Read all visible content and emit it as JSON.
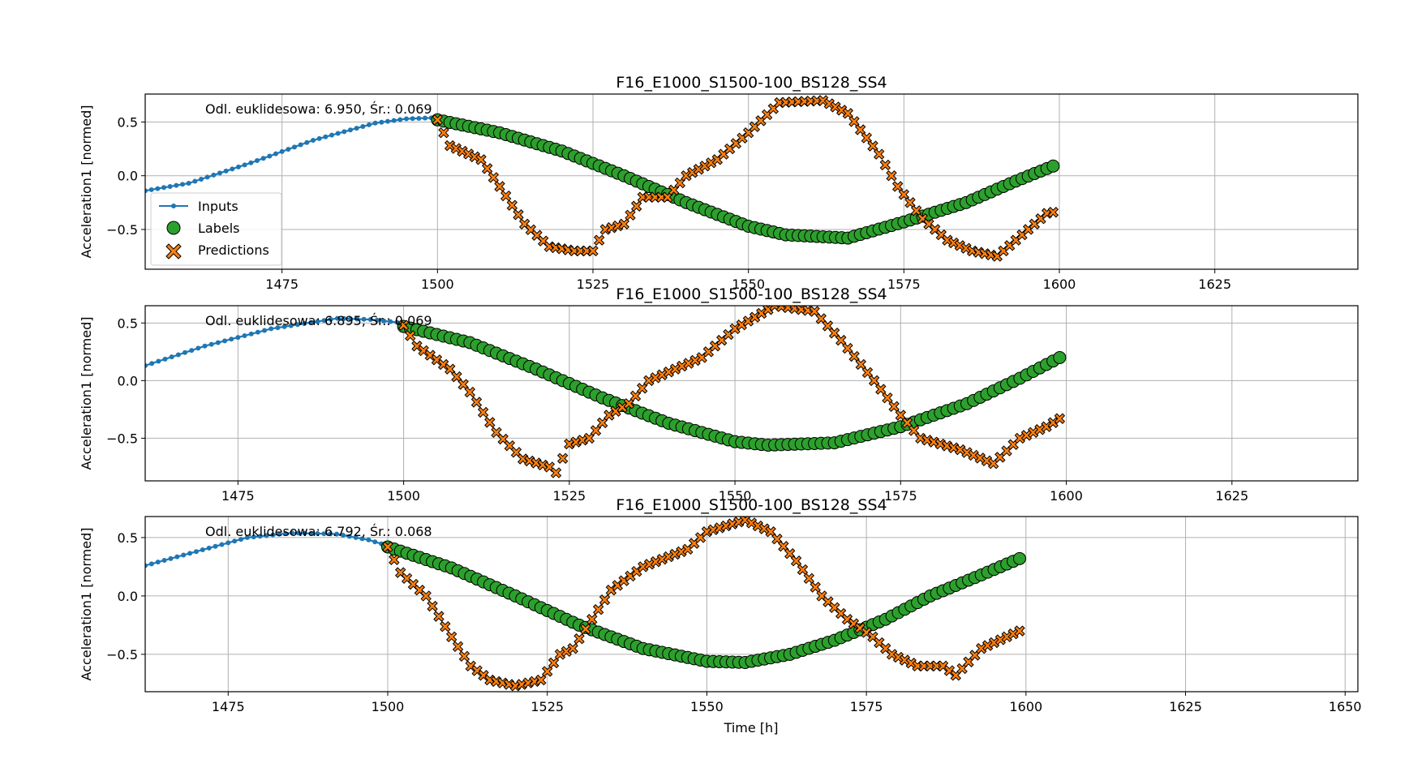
{
  "figure": {
    "xlabel": "Time [h]"
  },
  "legend": {
    "inputs": "Inputs",
    "labels": "Labels",
    "predictions": "Predictions"
  },
  "colors": {
    "inputs": "#1f77b4",
    "labels": "#2ca02c",
    "predictions": "#ff7f0e",
    "edge": "#000000",
    "grid": "#b0b0b0"
  },
  "chart_data": [
    {
      "type": "line",
      "title": "F16_E1000_S1500-100_BS128_SS4",
      "annotation": "Odl. euklidesowa: 6.950, Śr.: 0.069",
      "ylabel": "Acceleration1 [normed]",
      "xlim": [
        1453,
        1648
      ],
      "ylim": [
        -0.87,
        0.76
      ],
      "xticks": [
        1475,
        1500,
        1525,
        1550,
        1575,
        1600,
        1625
      ],
      "yticks": [
        -0.5,
        0.0,
        0.5
      ],
      "legend_position": "lower-left",
      "inputs": {
        "x_start": 1453,
        "x_end": 1500,
        "anchors": [
          [
            1453,
            -0.14
          ],
          [
            1460,
            -0.07
          ],
          [
            1470,
            0.12
          ],
          [
            1480,
            0.33
          ],
          [
            1490,
            0.49
          ],
          [
            1495,
            0.53
          ],
          [
            1500,
            0.54
          ]
        ]
      },
      "labels": {
        "x_start": 1500,
        "x_end": 1599,
        "anchors": [
          [
            1500,
            0.52
          ],
          [
            1510,
            0.4
          ],
          [
            1520,
            0.23
          ],
          [
            1530,
            0.0
          ],
          [
            1540,
            -0.25
          ],
          [
            1550,
            -0.47
          ],
          [
            1556,
            -0.55
          ],
          [
            1566,
            -0.58
          ],
          [
            1575,
            -0.43
          ],
          [
            1585,
            -0.25
          ],
          [
            1593,
            -0.05
          ],
          [
            1599,
            0.09
          ]
        ]
      },
      "predictions": {
        "x_start": 1500,
        "x_end": 1599,
        "anchors": [
          [
            1500,
            0.52
          ],
          [
            1502,
            0.28
          ],
          [
            1507,
            0.15
          ],
          [
            1510,
            -0.1
          ],
          [
            1514,
            -0.45
          ],
          [
            1518,
            -0.66
          ],
          [
            1522,
            -0.7
          ],
          [
            1525,
            -0.7
          ],
          [
            1527,
            -0.5
          ],
          [
            1530,
            -0.45
          ],
          [
            1533,
            -0.2
          ],
          [
            1537,
            -0.2
          ],
          [
            1540,
            0.0
          ],
          [
            1545,
            0.15
          ],
          [
            1550,
            0.4
          ],
          [
            1555,
            0.68
          ],
          [
            1562,
            0.7
          ],
          [
            1566,
            0.58
          ],
          [
            1571,
            0.2
          ],
          [
            1574,
            -0.1
          ],
          [
            1578,
            -0.4
          ],
          [
            1582,
            -0.6
          ],
          [
            1586,
            -0.7
          ],
          [
            1590,
            -0.75
          ],
          [
            1594,
            -0.55
          ],
          [
            1598,
            -0.35
          ],
          [
            1599,
            -0.34
          ]
        ]
      }
    },
    {
      "type": "line",
      "title": "F16_E1000_S1500-100_BS128_SS4",
      "annotation": "Odl. euklidesowa: 6.895, Śr.: 0.069",
      "ylabel": "Acceleration1 [normed]",
      "xlim": [
        1461,
        1644
      ],
      "ylim": [
        -0.87,
        0.65
      ],
      "xticks": [
        1475,
        1500,
        1525,
        1550,
        1575,
        1600,
        1625
      ],
      "yticks": [
        -0.5,
        0.0,
        0.5
      ],
      "inputs": {
        "x_start": 1461,
        "x_end": 1500,
        "anchors": [
          [
            1461,
            0.13
          ],
          [
            1470,
            0.3
          ],
          [
            1480,
            0.45
          ],
          [
            1490,
            0.54
          ],
          [
            1495,
            0.53
          ],
          [
            1500,
            0.5
          ]
        ]
      },
      "labels": {
        "x_start": 1500,
        "x_end": 1599,
        "anchors": [
          [
            1500,
            0.47
          ],
          [
            1510,
            0.33
          ],
          [
            1520,
            0.1
          ],
          [
            1530,
            -0.15
          ],
          [
            1540,
            -0.37
          ],
          [
            1550,
            -0.53
          ],
          [
            1555,
            -0.56
          ],
          [
            1565,
            -0.54
          ],
          [
            1575,
            -0.4
          ],
          [
            1585,
            -0.2
          ],
          [
            1593,
            0.02
          ],
          [
            1599,
            0.2
          ]
        ]
      },
      "predictions": {
        "x_start": 1500,
        "x_end": 1599,
        "anchors": [
          [
            1500,
            0.48
          ],
          [
            1502,
            0.3
          ],
          [
            1507,
            0.1
          ],
          [
            1510,
            -0.1
          ],
          [
            1514,
            -0.45
          ],
          [
            1518,
            -0.68
          ],
          [
            1522,
            -0.75
          ],
          [
            1523,
            -0.8
          ],
          [
            1525,
            -0.55
          ],
          [
            1528,
            -0.5
          ],
          [
            1531,
            -0.3
          ],
          [
            1534,
            -0.2
          ],
          [
            1537,
            0.0
          ],
          [
            1545,
            0.2
          ],
          [
            1550,
            0.45
          ],
          [
            1556,
            0.65
          ],
          [
            1562,
            0.6
          ],
          [
            1566,
            0.35
          ],
          [
            1571,
            0.0
          ],
          [
            1575,
            -0.3
          ],
          [
            1578,
            -0.5
          ],
          [
            1584,
            -0.6
          ],
          [
            1589,
            -0.72
          ],
          [
            1593,
            -0.5
          ],
          [
            1597,
            -0.4
          ],
          [
            1599,
            -0.33
          ]
        ]
      }
    },
    {
      "type": "line",
      "title": "F16_E1000_S1500-100_BS128_SS4",
      "annotation": "Odl. euklidesowa: 6.792, Śr.: 0.068",
      "ylabel": "Acceleration1 [normed]",
      "xlim": [
        1462,
        1652
      ],
      "ylim": [
        -0.82,
        0.68
      ],
      "xticks": [
        1475,
        1500,
        1525,
        1550,
        1575,
        1600,
        1625,
        1650
      ],
      "yticks": [
        -0.5,
        0.0,
        0.5
      ],
      "inputs": {
        "x_start": 1462,
        "x_end": 1500,
        "anchors": [
          [
            1462,
            0.26
          ],
          [
            1470,
            0.38
          ],
          [
            1478,
            0.5
          ],
          [
            1485,
            0.54
          ],
          [
            1492,
            0.53
          ],
          [
            1497,
            0.48
          ],
          [
            1500,
            0.43
          ]
        ]
      },
      "labels": {
        "x_start": 1500,
        "x_end": 1599,
        "anchors": [
          [
            1500,
            0.42
          ],
          [
            1510,
            0.24
          ],
          [
            1520,
            0.0
          ],
          [
            1530,
            -0.25
          ],
          [
            1540,
            -0.45
          ],
          [
            1550,
            -0.56
          ],
          [
            1556,
            -0.57
          ],
          [
            1563,
            -0.5
          ],
          [
            1570,
            -0.38
          ],
          [
            1578,
            -0.2
          ],
          [
            1585,
            0.0
          ],
          [
            1593,
            0.18
          ],
          [
            1599,
            0.32
          ]
        ]
      },
      "predictions": {
        "x_start": 1500,
        "x_end": 1599,
        "anchors": [
          [
            1500,
            0.42
          ],
          [
            1502,
            0.2
          ],
          [
            1506,
            0.0
          ],
          [
            1510,
            -0.35
          ],
          [
            1513,
            -0.6
          ],
          [
            1516,
            -0.72
          ],
          [
            1520,
            -0.77
          ],
          [
            1524,
            -0.72
          ],
          [
            1527,
            -0.5
          ],
          [
            1529,
            -0.45
          ],
          [
            1532,
            -0.2
          ],
          [
            1535,
            0.05
          ],
          [
            1540,
            0.25
          ],
          [
            1547,
            0.4
          ],
          [
            1550,
            0.55
          ],
          [
            1556,
            0.65
          ],
          [
            1560,
            0.55
          ],
          [
            1564,
            0.3
          ],
          [
            1568,
            0.0
          ],
          [
            1572,
            -0.2
          ],
          [
            1576,
            -0.35
          ],
          [
            1579,
            -0.5
          ],
          [
            1583,
            -0.6
          ],
          [
            1587,
            -0.6
          ],
          [
            1589,
            -0.68
          ],
          [
            1593,
            -0.45
          ],
          [
            1597,
            -0.35
          ],
          [
            1599,
            -0.3
          ]
        ]
      }
    }
  ]
}
